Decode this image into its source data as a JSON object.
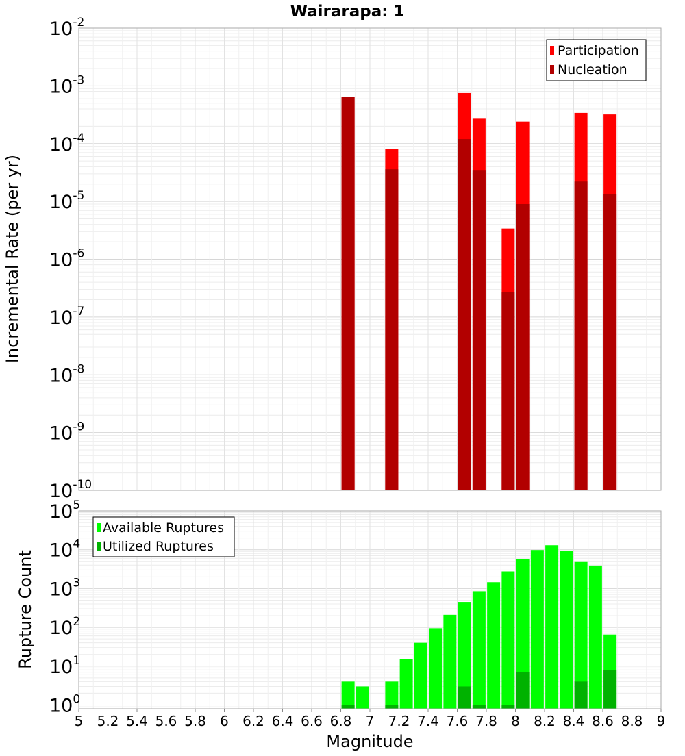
{
  "chart_data": [
    {
      "type": "bar",
      "title": "Wairarapa: 1",
      "ylabel": "Incremental Rate (per yr)",
      "yscale": "log",
      "ylim": [
        1e-10,
        0.01
      ],
      "xlim": [
        5,
        9
      ],
      "ytick_base": "10",
      "ytick_exponents": [
        "-10",
        "-9",
        "-8",
        "-7",
        "-6",
        "-5",
        "-4",
        "-3",
        "-2"
      ],
      "grid": true,
      "legend_position": "top-right",
      "series": [
        {
          "name": "Participation",
          "color": "#ff0000",
          "x": [
            6.85,
            7.15,
            7.65,
            7.75,
            7.95,
            8.05,
            8.45,
            8.65
          ],
          "values": [
            0.00065,
            8e-05,
            0.00075,
            0.00027,
            3.4e-06,
            0.00024,
            0.00034,
            0.00032
          ]
        },
        {
          "name": "Nucleation",
          "color": "#b20000",
          "x": [
            6.85,
            7.15,
            7.65,
            7.75,
            7.95,
            8.05,
            8.45,
            8.65
          ],
          "values": [
            0.00065,
            3.6e-05,
            0.00012,
            3.5e-05,
            2.7e-07,
            9e-06,
            2.2e-05,
            1.35e-05
          ]
        }
      ]
    },
    {
      "type": "bar",
      "xlabel": "Magnitude",
      "ylabel": "Rupture Count",
      "yscale": "log",
      "ylim": [
        0.8,
        100000
      ],
      "xlim": [
        5,
        9
      ],
      "ytick_base": "10",
      "ytick_exponents": [
        "0",
        "1",
        "2",
        "3",
        "4",
        "5"
      ],
      "xticks": [
        "5",
        "5.2",
        "5.4",
        "5.6",
        "5.8",
        "6",
        "6.2",
        "6.4",
        "6.6",
        "6.8",
        "7",
        "7.2",
        "7.4",
        "7.6",
        "7.8",
        "8",
        "8.2",
        "8.4",
        "8.6",
        "8.8",
        "9"
      ],
      "grid": true,
      "legend_position": "top-left",
      "series": [
        {
          "name": "Available Ruptures",
          "color": "#00ff00",
          "x": [
            6.85,
            6.95,
            7.15,
            7.25,
            7.35,
            7.45,
            7.55,
            7.65,
            7.75,
            7.85,
            7.95,
            8.05,
            8.15,
            8.25,
            8.35,
            8.45,
            8.55,
            8.65
          ],
          "values": [
            4,
            3,
            4,
            15,
            40,
            95,
            210,
            450,
            850,
            1450,
            2750,
            5800,
            9800,
            13000,
            9300,
            5000,
            3900,
            65
          ]
        },
        {
          "name": "Utilized Ruptures",
          "color": "#00b200",
          "x": [
            6.85,
            7.15,
            7.65,
            7.75,
            7.95,
            8.05,
            8.45,
            8.65
          ],
          "values": [
            1,
            1,
            3,
            1,
            1,
            7,
            4,
            8
          ]
        }
      ]
    }
  ]
}
